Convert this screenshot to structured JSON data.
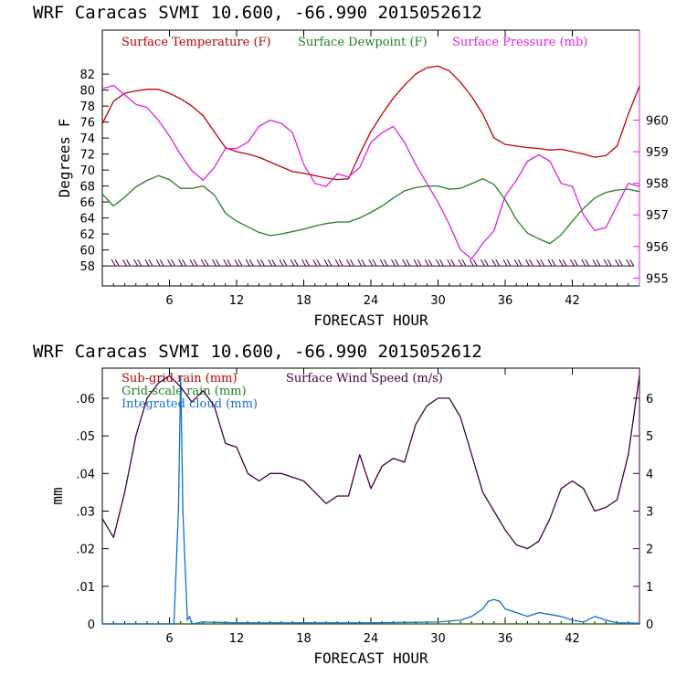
{
  "colors": {
    "temp": "#c00000",
    "dew": "#208020",
    "pres": "#e020e0",
    "subgrid": "#c00000",
    "grid": "#208020",
    "cloud": "#1070d0",
    "wind": "#400040"
  },
  "chart_data": [
    {
      "type": "line",
      "title": "WRF  Caracas SVMI  10.600, -66.990  2015052612",
      "xlabel": "FORECAST HOUR",
      "ylabel": "Degrees F",
      "xlim": [
        0,
        48
      ],
      "ylim": [
        55.5,
        87.5
      ],
      "y2lim": [
        954.75,
        962.85
      ],
      "x_ticks": [
        "6",
        "12",
        "18",
        "24",
        "30",
        "36",
        "42"
      ],
      "y_ticks": [
        "58",
        "60",
        "62",
        "64",
        "66",
        "68",
        "70",
        "72",
        "74",
        "76",
        "78",
        "80",
        "82"
      ],
      "y2_ticks": [
        "955",
        "956",
        "957",
        "958",
        "959",
        "960"
      ],
      "legend": [
        "Surface Temperature (F)",
        "Surface Dewpoint (F)",
        "Surface Pressure (mb)"
      ],
      "series": [
        {
          "name": "Surface Temperature (F)",
          "axis": "left",
          "color": "temp",
          "x": [
            0,
            1,
            2,
            3,
            4,
            5,
            6,
            7,
            8,
            9,
            10,
            11,
            12,
            13,
            14,
            15,
            16,
            17,
            18,
            19,
            20,
            21,
            22,
            23,
            24,
            25,
            26,
            27,
            28,
            29,
            30,
            31,
            32,
            33,
            34,
            35,
            36,
            37,
            38,
            39,
            40,
            41,
            42,
            43,
            44,
            45,
            46,
            47,
            48
          ],
          "y": [
            75.8,
            78.6,
            79.6,
            79.9,
            80.1,
            80.1,
            79.6,
            78.9,
            78.0,
            76.8,
            74.8,
            72.8,
            72.3,
            72.0,
            71.6,
            71.0,
            70.4,
            69.8,
            69.6,
            69.3,
            69.0,
            68.8,
            68.9,
            72.0,
            74.8,
            77.0,
            79.0,
            80.6,
            82.0,
            82.8,
            83.0,
            82.4,
            81.0,
            79.2,
            77.0,
            74.0,
            73.2,
            73.0,
            72.8,
            72.7,
            72.5,
            72.6,
            72.3,
            72.0,
            71.6,
            71.8,
            73.0,
            77.0,
            80.5
          ]
        },
        {
          "name": "Surface Dewpoint (F)",
          "axis": "left",
          "color": "dew",
          "x": [
            0,
            1,
            2,
            3,
            4,
            5,
            6,
            7,
            8,
            9,
            10,
            11,
            12,
            13,
            14,
            15,
            16,
            17,
            18,
            19,
            20,
            21,
            22,
            23,
            24,
            25,
            26,
            27,
            28,
            29,
            30,
            31,
            32,
            33,
            34,
            35,
            36,
            37,
            38,
            39,
            40,
            41,
            42,
            43,
            44,
            45,
            46,
            47,
            48
          ],
          "y": [
            67.0,
            65.5,
            66.6,
            67.9,
            68.7,
            69.3,
            68.8,
            67.7,
            67.7,
            68.0,
            66.9,
            64.6,
            63.6,
            62.9,
            62.2,
            61.8,
            62.0,
            62.3,
            62.6,
            63.0,
            63.3,
            63.5,
            63.5,
            64.0,
            64.7,
            65.5,
            66.5,
            67.4,
            67.8,
            68.0,
            68.0,
            67.6,
            67.7,
            68.3,
            68.9,
            68.2,
            66.3,
            63.8,
            62.1,
            61.4,
            60.8,
            61.9,
            63.6,
            65.2,
            66.5,
            67.2,
            67.5,
            67.6,
            67.3
          ]
        },
        {
          "name": "Surface Pressure (mb)",
          "axis": "right",
          "color": "pres",
          "x": [
            0,
            1,
            2,
            3,
            4,
            5,
            6,
            7,
            8,
            9,
            10,
            11,
            12,
            13,
            14,
            15,
            16,
            17,
            18,
            19,
            20,
            21,
            22,
            23,
            24,
            25,
            26,
            27,
            28,
            29,
            30,
            31,
            32,
            33,
            34,
            35,
            36,
            37,
            38,
            39,
            40,
            41,
            42,
            43,
            44,
            45,
            46,
            47,
            48
          ],
          "y": [
            961.0,
            961.1,
            960.8,
            960.5,
            960.4,
            960.0,
            959.5,
            958.9,
            958.4,
            958.1,
            958.5,
            959.1,
            959.1,
            959.3,
            959.8,
            960.0,
            959.9,
            959.6,
            958.6,
            958.0,
            957.9,
            958.3,
            958.2,
            958.5,
            959.3,
            959.6,
            959.8,
            959.3,
            958.6,
            958.0,
            957.4,
            956.7,
            955.9,
            955.6,
            956.1,
            956.5,
            957.6,
            958.1,
            958.7,
            958.9,
            958.7,
            958.0,
            957.9,
            957.0,
            956.5,
            956.6,
            957.3,
            958.0,
            957.9
          ]
        },
        {
          "name": "Wind barbs",
          "axis": "left",
          "color": "wind",
          "y_level": 58.0,
          "x": [
            1,
            2,
            3,
            4,
            5,
            6,
            7,
            8,
            9,
            10,
            11,
            12,
            13,
            14,
            15,
            16,
            17,
            18,
            19,
            20,
            21,
            22,
            23,
            24,
            25,
            26,
            27,
            28,
            29,
            30,
            31,
            32,
            33,
            34,
            35,
            36,
            37,
            38,
            39,
            40,
            41,
            42,
            43,
            44,
            45,
            46,
            47
          ]
        }
      ]
    },
    {
      "type": "line",
      "title": "WRF  Caracas SVMI  10.600, -66.990  2015052612",
      "xlabel": "FORECAST HOUR",
      "ylabel": "mm",
      "xlim": [
        0,
        48
      ],
      "ylim": [
        0,
        0.068
      ],
      "y2lim": [
        0,
        6.8
      ],
      "x_ticks": [
        "6",
        "12",
        "18",
        "24",
        "30",
        "36",
        "42"
      ],
      "y_ticks": [
        "0",
        ".01",
        ".02",
        ".03",
        ".04",
        ".05",
        ".06"
      ],
      "y2_ticks": [
        "0",
        "1",
        "2",
        "3",
        "4",
        "5",
        "6"
      ],
      "legend": [
        "Sub-grid rain (mm)",
        "Grid-scale rain (mm)",
        "Integrated cloud (mm)",
        "Surface Wind Speed (m/s)"
      ],
      "series": [
        {
          "name": "Sub-grid rain (mm)",
          "axis": "left",
          "color": "subgrid",
          "x": [
            0,
            48
          ],
          "y": [
            0.0,
            0.0
          ]
        },
        {
          "name": "Grid-scale rain (mm)",
          "axis": "left",
          "color": "grid",
          "x": [
            0,
            48
          ],
          "y": [
            0.0,
            0.0
          ]
        },
        {
          "name": "Integrated cloud (mm)",
          "axis": "left",
          "color": "cloud",
          "x": [
            0,
            5.5,
            6.4,
            6.8,
            7.0,
            7.2,
            7.6,
            7.8,
            8.0,
            9,
            12,
            18,
            24,
            30,
            32,
            33,
            34,
            34.5,
            35,
            35.5,
            36,
            37,
            38,
            39,
            40,
            41,
            42,
            43,
            44,
            45,
            46,
            48
          ],
          "y": [
            0.0,
            0.0,
            0.0,
            0.03,
            0.066,
            0.03,
            0.001,
            0.002,
            0.0,
            0.0005,
            0.0003,
            0.0003,
            0.0003,
            0.0005,
            0.001,
            0.002,
            0.004,
            0.006,
            0.0065,
            0.006,
            0.004,
            0.003,
            0.002,
            0.003,
            0.0025,
            0.002,
            0.001,
            0.0005,
            0.002,
            0.001,
            0.0003,
            0.0002
          ]
        },
        {
          "name": "Surface Wind Speed (m/s)",
          "axis": "right",
          "color": "wind",
          "x": [
            0,
            1,
            2,
            3,
            4,
            5,
            6,
            7,
            8,
            9,
            10,
            11,
            12,
            13,
            14,
            15,
            16,
            17,
            18,
            19,
            20,
            21,
            22,
            23,
            24,
            25,
            26,
            27,
            28,
            29,
            30,
            31,
            32,
            33,
            34,
            35,
            36,
            37,
            38,
            39,
            40,
            41,
            42,
            43,
            44,
            45,
            46,
            47,
            48
          ],
          "y": [
            2.8,
            2.3,
            3.5,
            5.0,
            6.0,
            6.4,
            6.6,
            6.3,
            5.9,
            6.2,
            5.8,
            4.8,
            4.7,
            4.0,
            3.8,
            4.0,
            4.0,
            3.9,
            3.8,
            3.5,
            3.2,
            3.4,
            3.4,
            4.5,
            3.6,
            4.2,
            4.4,
            4.3,
            5.3,
            5.8,
            6.0,
            6.0,
            5.5,
            4.5,
            3.5,
            3.0,
            2.5,
            2.1,
            2.0,
            2.2,
            2.8,
            3.6,
            3.8,
            3.6,
            3.0,
            3.1,
            3.3,
            4.5,
            6.6
          ]
        }
      ]
    }
  ]
}
